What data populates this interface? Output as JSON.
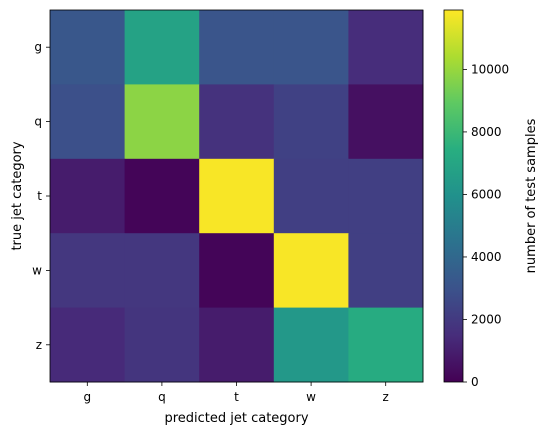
{
  "chart_data": {
    "type": "heatmap",
    "title": "",
    "xlabel": "predicted jet category",
    "ylabel": "true jet category",
    "x_categories": [
      "g",
      "q",
      "t",
      "w",
      "z"
    ],
    "y_categories": [
      "g",
      "q",
      "t",
      "w",
      "z"
    ],
    "values": [
      [
        3200,
        6800,
        3100,
        3100,
        1500
      ],
      [
        2900,
        9800,
        1700,
        2300,
        500
      ],
      [
        900,
        150,
        11800,
        2200,
        2200
      ],
      [
        1900,
        1900,
        150,
        11800,
        2200
      ],
      [
        1400,
        1800,
        900,
        6300,
        7300
      ]
    ],
    "colorbar": {
      "label": "number of test samples",
      "ticks": [
        0,
        2000,
        4000,
        6000,
        8000,
        10000
      ],
      "range": [
        0,
        11900
      ],
      "colormap": "viridis"
    }
  }
}
